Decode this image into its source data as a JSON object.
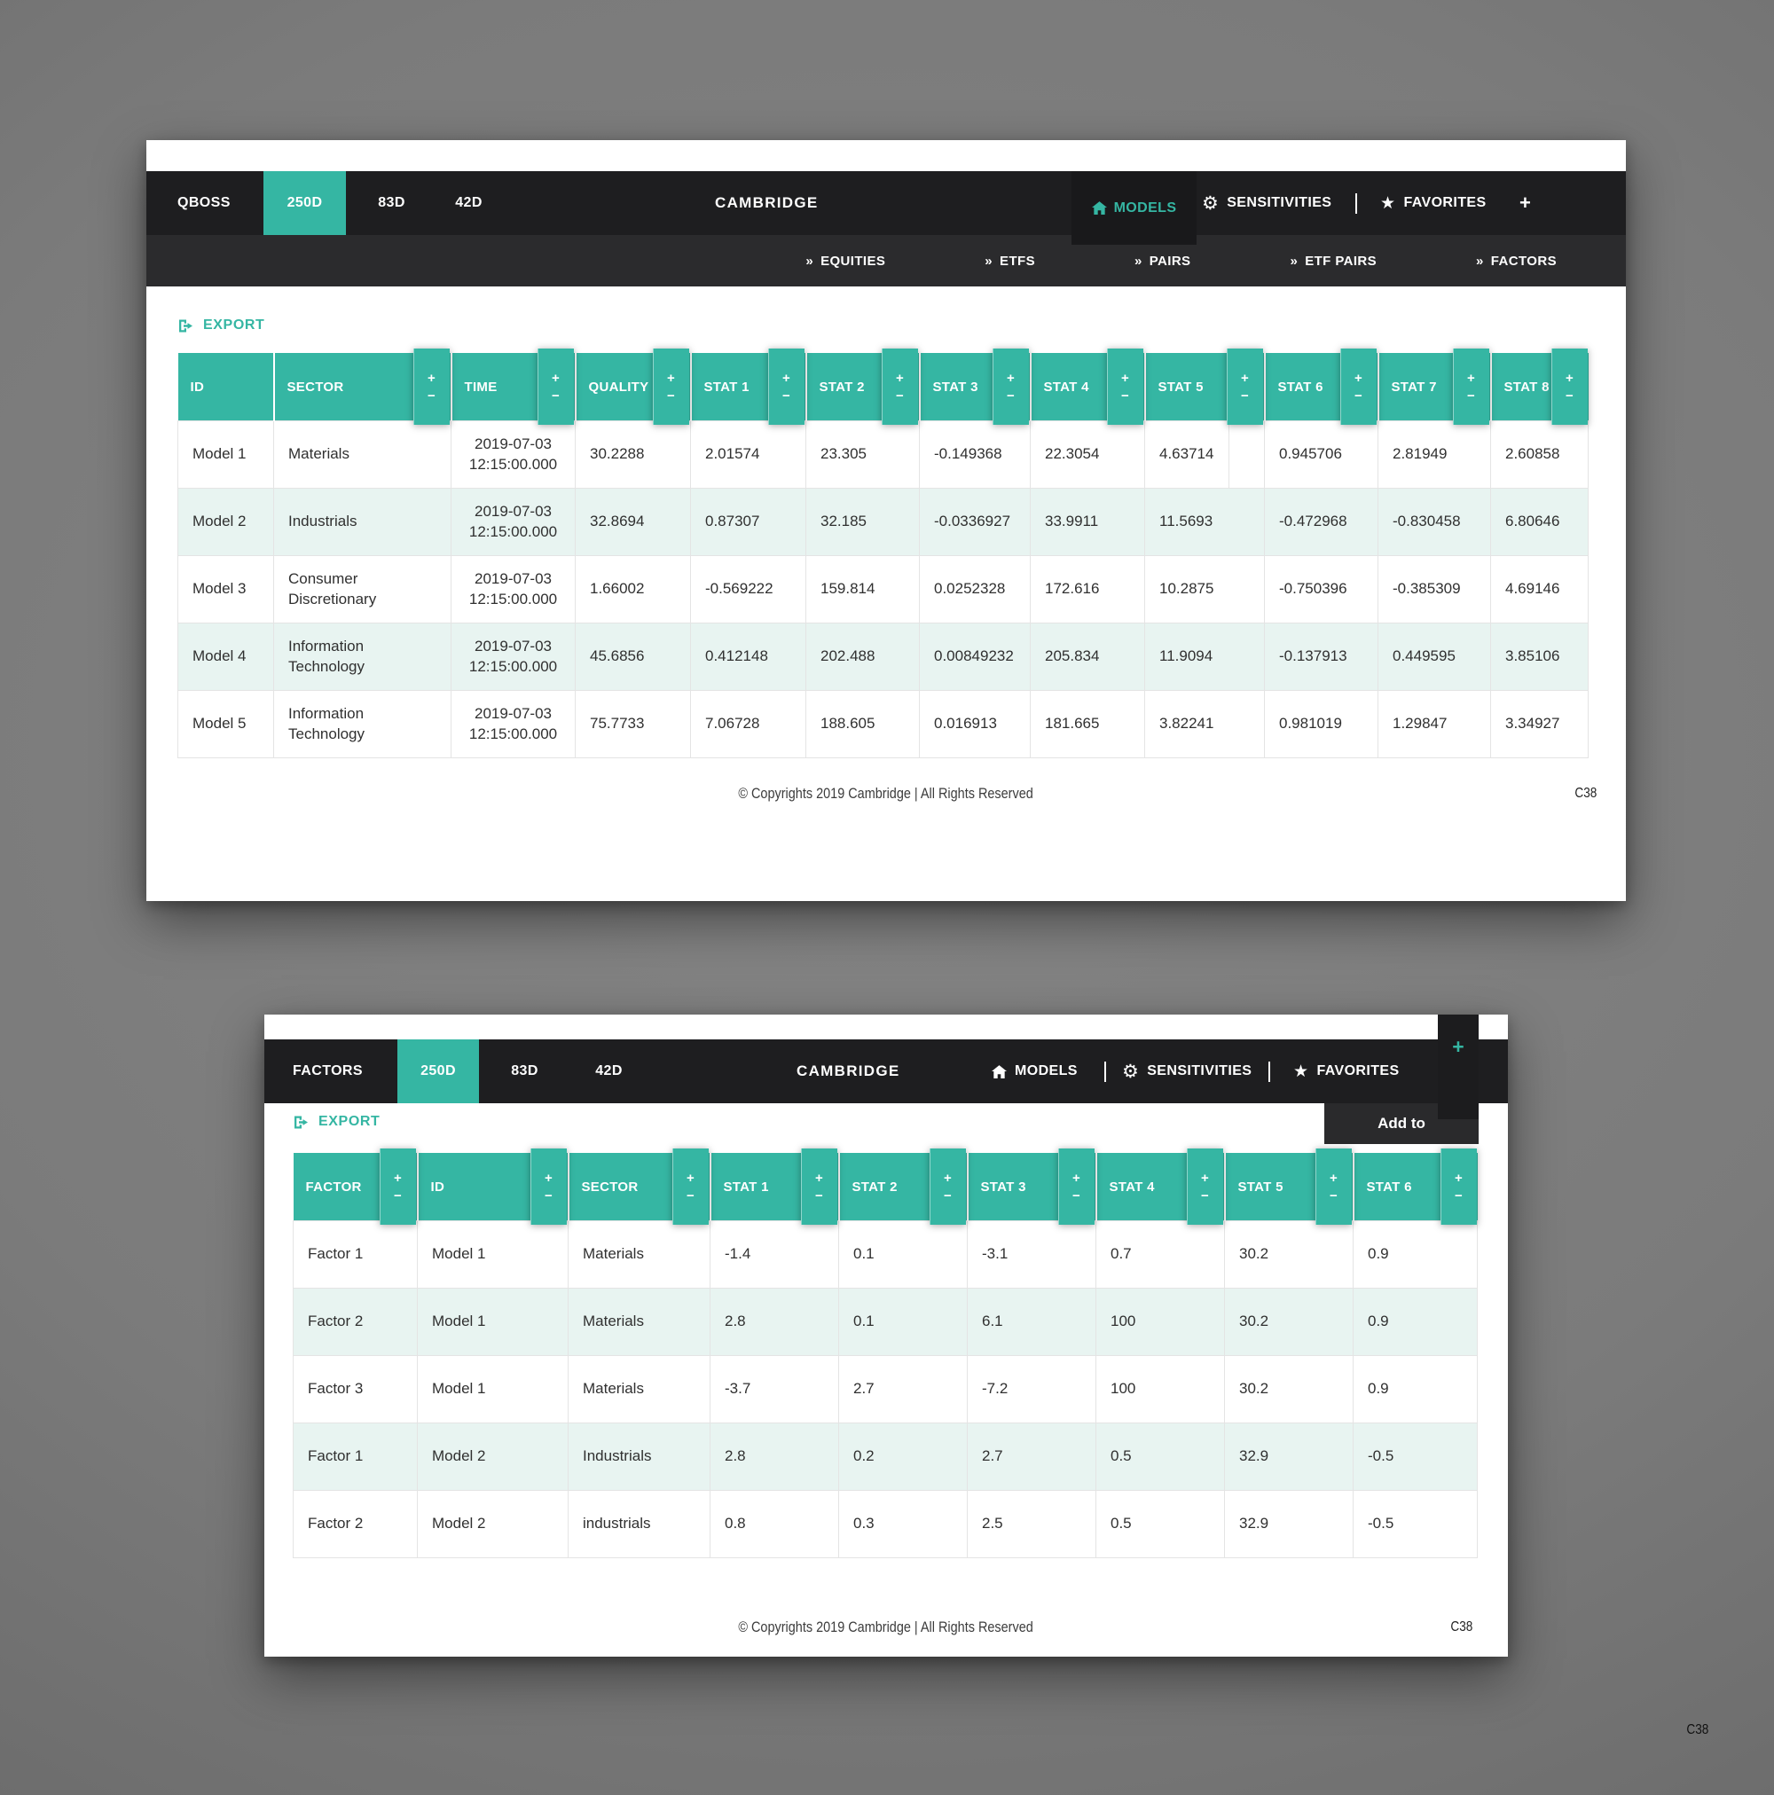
{
  "colors": {
    "accent": "#35b6a3",
    "navbar": "#1e1e20",
    "submenu": "#2b2b2d",
    "row_alt": "#e8f4f1"
  },
  "sort": {
    "asc": "+",
    "desc": "−"
  },
  "chevron": "»",
  "page_code": "C38",
  "w1": {
    "brand": "QBOSS",
    "period_tabs": [
      "250D",
      "83D",
      "42D"
    ],
    "active_period": "250D",
    "title": "CAMBRIDGE",
    "menu": {
      "models": "MODELS",
      "sensitivities": "SENSITIVITIES",
      "favorites": "FAVORITES",
      "add": "+"
    },
    "submenu": [
      "EQUITIES",
      "ETFS",
      "PAIRS",
      "ETF PAIRS",
      "FACTORS"
    ],
    "export_label": "EXPORT",
    "table": {
      "columns": [
        {
          "label": "ID",
          "sortable": false
        },
        {
          "label": "SECTOR",
          "sortable": true
        },
        {
          "label": "TIME",
          "sortable": true
        },
        {
          "label": "QUALITY",
          "sortable": true
        },
        {
          "label": "STAT 1",
          "sortable": true
        },
        {
          "label": "STAT 2",
          "sortable": true
        },
        {
          "label": "STAT 3",
          "sortable": true
        },
        {
          "label": "STAT 4",
          "sortable": true
        },
        {
          "label": "STAT 5",
          "sortable": true
        },
        {
          "label": "STAT 6",
          "sortable": true
        },
        {
          "label": "STAT 7",
          "sortable": true
        },
        {
          "label": "STAT 8",
          "sortable": true
        }
      ],
      "rows": [
        [
          "Model 1",
          "Materials",
          "2019-07-03 12:15:00.000",
          "30.2288",
          "2.01574",
          "23.305",
          "-0.149368",
          "22.3054",
          "4.63714",
          "0.945706",
          "2.81949",
          "2.60858"
        ],
        [
          "Model 2",
          "Industrials",
          "2019-07-03 12:15:00.000",
          "32.8694",
          "0.87307",
          "32.185",
          "-0.0336927",
          "33.9911",
          "11.5693",
          "-0.472968",
          "-0.830458",
          "6.80646"
        ],
        [
          "Model 3",
          "Consumer Discretionary",
          "2019-07-03 12:15:00.000",
          "1.66002",
          "-0.569222",
          "159.814",
          "0.0252328",
          "172.616",
          "10.2875",
          "-0.750396",
          "-0.385309",
          "4.69146"
        ],
        [
          "Model 4",
          "Information Technology",
          "2019-07-03 12:15:00.000",
          "45.6856",
          "0.412148",
          "202.488",
          "0.00849232",
          "205.834",
          "11.9094",
          "-0.137913",
          "0.449595",
          "3.85106"
        ],
        [
          "Model 5",
          "Information Technology",
          "2019-07-03 12:15:00.000",
          "75.7733",
          "7.06728",
          "188.605",
          "0.016913",
          "181.665",
          "3.82241",
          "0.981019",
          "1.29847",
          "3.34927"
        ]
      ]
    },
    "footer": {
      "copyright": "© Copyrights 2019 Cambridge | All Rights Reserved",
      "code": "C38"
    }
  },
  "w2": {
    "brand": "FACTORS",
    "period_tabs": [
      "250D",
      "83D",
      "42D"
    ],
    "active_period": "250D",
    "title": "CAMBRIDGE",
    "menu": {
      "models": "MODELS",
      "sensitivities": "SENSITIVITIES",
      "favorites": "FAVORITES",
      "add": "+"
    },
    "dropdown": {
      "add_to": "Add to"
    },
    "export_label": "EXPORT",
    "table": {
      "columns": [
        {
          "label": "FACTOR",
          "sortable": true
        },
        {
          "label": "ID",
          "sortable": true
        },
        {
          "label": "SECTOR",
          "sortable": true
        },
        {
          "label": "STAT 1",
          "sortable": true
        },
        {
          "label": "STAT 2",
          "sortable": true
        },
        {
          "label": "STAT 3",
          "sortable": true
        },
        {
          "label": "STAT 4",
          "sortable": true
        },
        {
          "label": "STAT 5",
          "sortable": true
        },
        {
          "label": "STAT 6",
          "sortable": true
        }
      ],
      "rows": [
        [
          "Factor 1",
          "Model 1",
          "Materials",
          "-1.4",
          "0.1",
          "-3.1",
          "0.7",
          "30.2",
          "0.9"
        ],
        [
          "Factor 2",
          "Model 1",
          "Materials",
          "2.8",
          "0.1",
          "6.1",
          "100",
          "30.2",
          "0.9"
        ],
        [
          "Factor 3",
          "Model 1",
          "Materials",
          "-3.7",
          "2.7",
          "-7.2",
          "100",
          "30.2",
          "0.9"
        ],
        [
          "Factor 1",
          "Model 2",
          "Industrials",
          "2.8",
          "0.2",
          "2.7",
          "0.5",
          "32.9",
          "-0.5"
        ],
        [
          "Factor 2",
          "Model 2",
          "industrials",
          "0.8",
          "0.3",
          "2.5",
          "0.5",
          "32.9",
          "-0.5"
        ]
      ]
    },
    "footer": {
      "copyright": "© Copyrights 2019 Cambridge | All Rights Reserved",
      "code": "C38"
    }
  }
}
